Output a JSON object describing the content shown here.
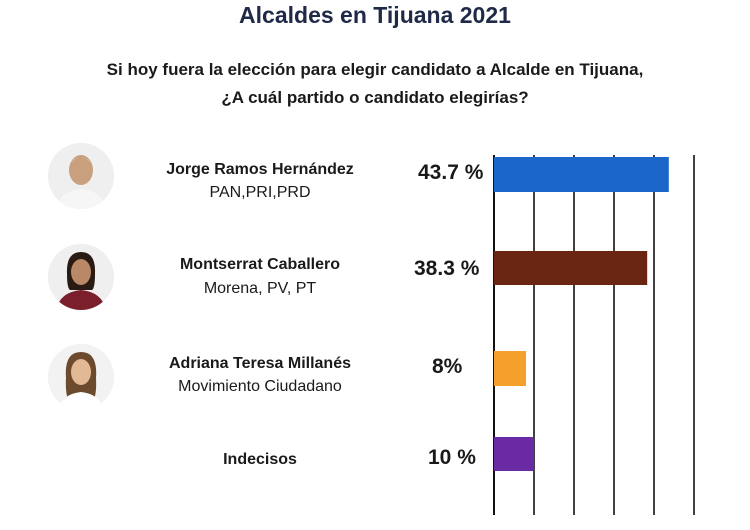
{
  "title": "Alcaldes en Tijuana 2021",
  "subtitle": {
    "line1": "Si hoy fuera la elección para elegir candidato a Alcalde en Tijuana,",
    "line2": "¿A cuál partido o candidato elegirías?"
  },
  "chart_data": {
    "type": "bar",
    "orientation": "horizontal",
    "categories": [
      "Jorge Ramos Hernández",
      "Montserrat Caballero",
      "Adriana Teresa Millanés",
      "Indecisos"
    ],
    "values": [
      43.7,
      38.3,
      8,
      10
    ],
    "value_labels": [
      "43.7 %",
      "38.3 %",
      "8%",
      "10 %"
    ],
    "parties": [
      "PAN,PRI,PRD",
      "Morena, PV, PT",
      "Movimiento Ciudadano",
      ""
    ],
    "colors": [
      "#1a66c9",
      "#6b2513",
      "#f5a02a",
      "#6a2aa3"
    ],
    "xlim": [
      0,
      50
    ],
    "grid": true
  }
}
